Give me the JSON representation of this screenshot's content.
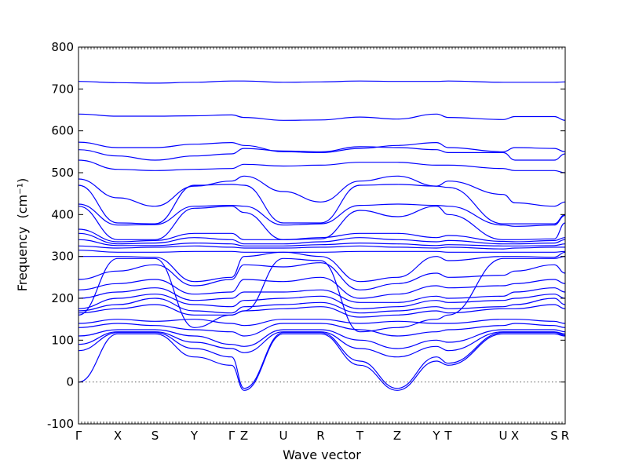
{
  "chart_data": {
    "type": "line",
    "title": "",
    "xlabel": "Wave vector",
    "ylabel": "Frequency",
    "ylabel_unit": "(cm⁻¹)",
    "ylim": [
      -100,
      800
    ],
    "yticks": [
      -100,
      0,
      100,
      200,
      300,
      400,
      500,
      600,
      700,
      800
    ],
    "xlim": [
      0,
      12.4
    ],
    "xticks": [
      {
        "x": 0,
        "label": "Γ"
      },
      {
        "x": 1,
        "label": "X"
      },
      {
        "x": 1.95,
        "label": "S"
      },
      {
        "x": 2.95,
        "label": "Y"
      },
      {
        "x": 3.9,
        "label": "Γ"
      },
      {
        "x": 4.22,
        "label": "Z"
      },
      {
        "x": 5.22,
        "label": "U"
      },
      {
        "x": 6.17,
        "label": "R"
      },
      {
        "x": 7.17,
        "label": "T"
      },
      {
        "x": 8.12,
        "label": "Z"
      },
      {
        "x": 9.12,
        "label": "Y"
      },
      {
        "x": 9.42,
        "label": "T"
      },
      {
        "x": 10.82,
        "label": "U"
      },
      {
        "x": 11.12,
        "label": "X"
      },
      {
        "x": 12.12,
        "label": "S"
      },
      {
        "x": 12.4,
        "label": "R"
      }
    ],
    "zero_line": 0,
    "line_color": "#0000ff",
    "series": [
      {
        "x": [
          0,
          1,
          1.95,
          2.95,
          3.9,
          4.22,
          5.22,
          6.17,
          7.17,
          8.12,
          9.12,
          9.42,
          10.82,
          11.12,
          12.12,
          12.4
        ],
        "values": [
          718,
          715,
          714,
          716,
          719,
          719,
          716,
          717,
          719,
          718,
          718,
          719,
          716,
          716,
          716,
          717
        ]
      },
      {
        "x": [
          0,
          1,
          1.95,
          2.95,
          3.9,
          4.22,
          5.22,
          6.17,
          7.17,
          8.12,
          9.12,
          9.42,
          10.82,
          11.12,
          12.12,
          12.4
        ],
        "values": [
          640,
          635,
          635,
          636,
          638,
          632,
          625,
          626,
          633,
          628,
          640,
          632,
          627,
          634,
          634,
          625
        ]
      },
      {
        "x": [
          0,
          1,
          1.95,
          2.95,
          3.9,
          4.22,
          5.22,
          6.17,
          7.17,
          8.12,
          9.12,
          9.42,
          10.82,
          11.12,
          12.12,
          12.4
        ],
        "values": [
          573,
          560,
          560,
          568,
          572,
          565,
          550,
          548,
          558,
          565,
          572,
          560,
          550,
          560,
          558,
          550
        ]
      },
      {
        "x": [
          0,
          1,
          1.95,
          2.95,
          3.9,
          4.22,
          5.22,
          6.17,
          7.17,
          8.12,
          9.12,
          9.42,
          10.82,
          11.12,
          12.12,
          12.4
        ],
        "values": [
          555,
          540,
          530,
          540,
          545,
          558,
          552,
          550,
          562,
          560,
          555,
          548,
          548,
          530,
          530,
          545
        ]
      },
      {
        "x": [
          0,
          1,
          1.95,
          2.95,
          3.9,
          4.22,
          5.22,
          6.17,
          7.17,
          8.12,
          9.12,
          9.42,
          10.82,
          11.12,
          12.12,
          12.4
        ],
        "values": [
          530,
          508,
          505,
          508,
          510,
          520,
          516,
          518,
          525,
          525,
          518,
          518,
          510,
          505,
          505,
          500
        ]
      },
      {
        "x": [
          0,
          1,
          1.95,
          2.95,
          3.9,
          4.22,
          5.22,
          6.17,
          7.17,
          8.12,
          9.12,
          9.42,
          10.82,
          11.12,
          12.12,
          12.4
        ],
        "values": [
          485,
          440,
          420,
          468,
          480,
          492,
          455,
          430,
          480,
          492,
          468,
          480,
          448,
          428,
          420,
          430
        ]
      },
      {
        "x": [
          0,
          1,
          1.95,
          2.95,
          3.9,
          4.22,
          5.22,
          6.17,
          7.17,
          8.12,
          9.12,
          9.42,
          10.82,
          11.12,
          12.12,
          12.4
        ],
        "values": [
          470,
          380,
          378,
          470,
          472,
          470,
          380,
          380,
          470,
          472,
          468,
          465,
          378,
          378,
          378,
          400
        ]
      },
      {
        "x": [
          0,
          1,
          1.95,
          2.95,
          3.9,
          4.22,
          5.22,
          6.17,
          7.17,
          8.12,
          9.12,
          9.42,
          10.82,
          11.12,
          12.12,
          12.4
        ],
        "values": [
          425,
          375,
          376,
          420,
          422,
          420,
          375,
          378,
          422,
          425,
          422,
          420,
          375,
          372,
          375,
          398
        ]
      },
      {
        "x": [
          0,
          1,
          1.95,
          2.95,
          3.9,
          4.22,
          5.22,
          6.17,
          7.17,
          8.12,
          9.12,
          9.42,
          10.82,
          11.12,
          12.12,
          12.4
        ],
        "values": [
          420,
          340,
          340,
          415,
          420,
          405,
          340,
          342,
          410,
          395,
          420,
          400,
          340,
          340,
          342,
          380
        ]
      },
      {
        "x": [
          0,
          1,
          1.95,
          2.95,
          3.9,
          4.22,
          5.22,
          6.17,
          7.17,
          8.12,
          9.12,
          9.42,
          10.82,
          11.12,
          12.12,
          12.4
        ],
        "values": [
          365,
          335,
          338,
          355,
          355,
          340,
          340,
          345,
          355,
          355,
          345,
          350,
          336,
          335,
          338,
          345
        ]
      },
      {
        "x": [
          0,
          1,
          1.95,
          2.95,
          3.9,
          4.22,
          5.22,
          6.17,
          7.17,
          8.12,
          9.12,
          9.42,
          10.82,
          11.12,
          12.12,
          12.4
        ],
        "values": [
          355,
          330,
          332,
          345,
          340,
          330,
          330,
          335,
          345,
          340,
          335,
          338,
          330,
          330,
          332,
          340
        ]
      },
      {
        "x": [
          0,
          1,
          1.95,
          2.95,
          3.9,
          4.22,
          5.22,
          6.17,
          7.17,
          8.12,
          9.12,
          9.42,
          10.82,
          11.12,
          12.12,
          12.4
        ],
        "values": [
          340,
          326,
          326,
          332,
          330,
          325,
          325,
          328,
          332,
          330,
          326,
          328,
          325,
          325,
          326,
          330
        ]
      },
      {
        "x": [
          0,
          1,
          1.95,
          2.95,
          3.9,
          4.22,
          5.22,
          6.17,
          7.17,
          8.12,
          9.12,
          9.42,
          10.82,
          11.12,
          12.12,
          12.4
        ],
        "values": [
          325,
          320,
          322,
          325,
          322,
          320,
          320,
          322,
          325,
          322,
          320,
          322,
          318,
          320,
          322,
          322
        ]
      },
      {
        "x": [
          0,
          1,
          1.95,
          2.95,
          3.9,
          4.22,
          5.22,
          6.17,
          7.17,
          8.12,
          9.12,
          9.42,
          10.82,
          11.12,
          12.12,
          12.4
        ],
        "values": [
          315,
          310,
          310,
          312,
          312,
          310,
          310,
          310,
          312,
          312,
          312,
          310,
          310,
          310,
          310,
          312
        ]
      },
      {
        "x": [
          0,
          1,
          1.95,
          2.95,
          3.9,
          4.22,
          5.22,
          6.17,
          7.17,
          8.12,
          9.12,
          9.42,
          10.82,
          11.12,
          12.12,
          12.4
        ],
        "values": [
          300,
          300,
          298,
          240,
          250,
          300,
          310,
          300,
          240,
          250,
          300,
          290,
          300,
          300,
          298,
          310
        ]
      },
      {
        "x": [
          0,
          1,
          1.95,
          2.95,
          3.9,
          4.22,
          5.22,
          6.17,
          7.17,
          8.12,
          9.12,
          9.42,
          10.82,
          11.12,
          12.12,
          12.4
        ],
        "values": [
          245,
          265,
          280,
          230,
          245,
          280,
          275,
          285,
          220,
          235,
          260,
          250,
          255,
          265,
          280,
          260
        ]
      },
      {
        "x": [
          0,
          1,
          1.95,
          2.95,
          3.9,
          4.22,
          5.22,
          6.17,
          7.17,
          8.12,
          9.12,
          9.42,
          10.82,
          11.12,
          12.12,
          12.4
        ],
        "values": [
          220,
          235,
          245,
          210,
          215,
          245,
          240,
          250,
          200,
          210,
          230,
          225,
          230,
          235,
          245,
          235
        ]
      },
      {
        "x": [
          0,
          1,
          1.95,
          2.95,
          3.9,
          4.22,
          5.22,
          6.17,
          7.17,
          8.12,
          9.12,
          9.42,
          10.82,
          11.12,
          12.12,
          12.4
        ],
        "values": [
          200,
          215,
          225,
          195,
          200,
          215,
          215,
          220,
          190,
          190,
          205,
          200,
          205,
          215,
          225,
          215
        ]
      },
      {
        "x": [
          0,
          1,
          1.95,
          2.95,
          3.9,
          4.22,
          5.22,
          6.17,
          7.17,
          8.12,
          9.12,
          9.42,
          10.82,
          11.12,
          12.12,
          12.4
        ],
        "values": [
          175,
          200,
          210,
          185,
          180,
          195,
          200,
          205,
          175,
          180,
          195,
          190,
          195,
          200,
          210,
          200
        ]
      },
      {
        "x": [
          0,
          1,
          1.95,
          2.95,
          3.9,
          4.22,
          5.22,
          6.17,
          7.17,
          8.12,
          9.12,
          9.42,
          10.82,
          11.12,
          12.12,
          12.4
        ],
        "values": [
          170,
          185,
          200,
          170,
          165,
          180,
          185,
          190,
          165,
          170,
          180,
          175,
          180,
          185,
          200,
          185
        ]
      },
      {
        "x": [
          0,
          1,
          1.95,
          2.95,
          3.9,
          4.22,
          5.22,
          6.17,
          7.17,
          8.12,
          9.12,
          9.42,
          10.82,
          11.12,
          12.12,
          12.4
        ],
        "values": [
          165,
          175,
          185,
          160,
          160,
          170,
          175,
          180,
          155,
          160,
          170,
          165,
          175,
          175,
          185,
          175
        ]
      },
      {
        "x": [
          0,
          1,
          1.95,
          2.95,
          3.9,
          4.22,
          5.22,
          6.17,
          7.17,
          8.12,
          9.12,
          9.42,
          10.82,
          11.12,
          12.12,
          12.4
        ],
        "values": [
          160,
          295,
          295,
          130,
          160,
          170,
          295,
          290,
          120,
          130,
          150,
          160,
          295,
          295,
          295,
          300
        ]
      },
      {
        "x": [
          0,
          1,
          1.95,
          2.95,
          3.9,
          4.22,
          5.22,
          6.17,
          7.17,
          8.12,
          9.12,
          9.42,
          10.82,
          11.12,
          12.12,
          12.4
        ],
        "values": [
          140,
          150,
          145,
          150,
          140,
          135,
          150,
          150,
          140,
          145,
          140,
          140,
          150,
          150,
          145,
          140
        ]
      },
      {
        "x": [
          0,
          1,
          1.95,
          2.95,
          3.9,
          4.22,
          5.22,
          6.17,
          7.17,
          8.12,
          9.12,
          9.42,
          10.82,
          11.12,
          12.12,
          12.4
        ],
        "values": [
          130,
          140,
          135,
          125,
          120,
          110,
          140,
          140,
          125,
          110,
          120,
          125,
          135,
          140,
          135,
          130
        ]
      },
      {
        "x": [
          0,
          1,
          1.95,
          2.95,
          3.9,
          4.22,
          5.22,
          6.17,
          7.17,
          8.12,
          9.12,
          9.42,
          10.82,
          11.12,
          12.12,
          12.4
        ],
        "values": [
          110,
          125,
          125,
          110,
          90,
          85,
          125,
          125,
          100,
          80,
          100,
          95,
          125,
          125,
          125,
          120
        ]
      },
      {
        "x": [
          0,
          1,
          1.95,
          2.95,
          3.9,
          4.22,
          5.22,
          6.17,
          7.17,
          8.12,
          9.12,
          9.42,
          10.82,
          11.12,
          12.12,
          12.4
        ],
        "values": [
          90,
          120,
          120,
          95,
          80,
          70,
          120,
          120,
          80,
          60,
          85,
          75,
          120,
          120,
          120,
          115
        ]
      },
      {
        "x": [
          0,
          1,
          1.95,
          2.95,
          3.9,
          4.22,
          5.22,
          6.17,
          7.17,
          8.12,
          9.12,
          9.42,
          10.82,
          11.12,
          12.12,
          12.4
        ],
        "values": [
          75,
          118,
          118,
          80,
          60,
          -15,
          118,
          118,
          50,
          -15,
          60,
          45,
          118,
          118,
          118,
          112
        ]
      },
      {
        "x": [
          0,
          1,
          1.95,
          2.95,
          3.9,
          4.22,
          5.22,
          6.17,
          7.17,
          8.12,
          9.12,
          9.42,
          10.82,
          11.12,
          12.12,
          12.4
        ],
        "values": [
          0,
          115,
          115,
          60,
          40,
          -20,
          115,
          115,
          40,
          -20,
          50,
          40,
          115,
          115,
          115,
          110
        ]
      }
    ]
  }
}
